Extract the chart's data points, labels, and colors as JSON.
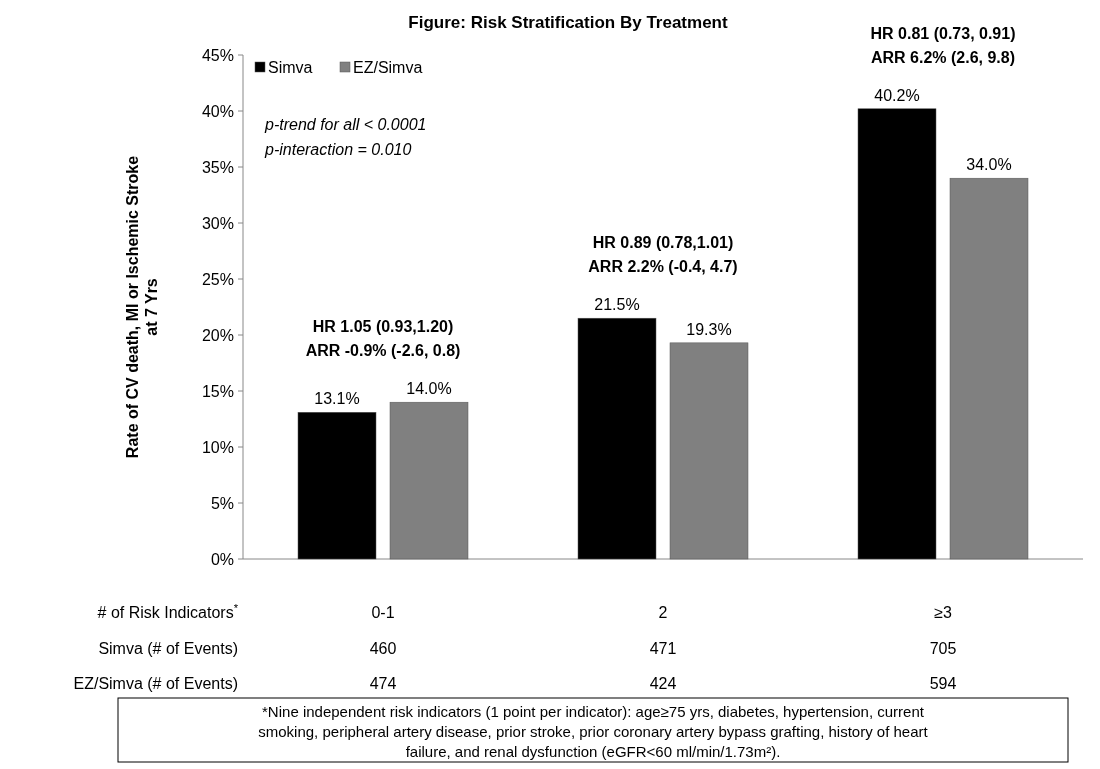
{
  "chart_data": {
    "type": "bar",
    "title": "Figure: Risk Stratification By Treatment",
    "xlabel": "# of Risk Indicators$^{*}$",
    "ylabel": "Rate of CV death, MI or Ischemic Stroke at 7 Yrs",
    "categories": [
      "0-1",
      "2",
      "≥3"
    ],
    "series": [
      {
        "name": "Simva",
        "color": "#000000",
        "values": [
          13.1,
          21.5,
          40.2
        ],
        "value_labels": [
          "13.1%",
          "21.5%",
          "40.2%"
        ]
      },
      {
        "name": "EZ/Simva",
        "color": "#808080",
        "values": [
          14.0,
          19.3,
          34.0
        ],
        "value_labels": [
          "14.0%",
          "19.3%",
          "34.0%"
        ]
      }
    ],
    "ylim": [
      0,
      45
    ],
    "yticks": [
      {
        "value": 0,
        "label": "0%"
      },
      {
        "value": 5,
        "label": "5%"
      },
      {
        "value": 10,
        "label": "10%"
      },
      {
        "value": 15,
        "label": "15%"
      },
      {
        "value": 20,
        "label": "20%"
      },
      {
        "value": 25,
        "label": "25%"
      },
      {
        "value": 30,
        "label": "30%"
      },
      {
        "value": 35,
        "label": "35%"
      },
      {
        "value": 40,
        "label": "40%"
      },
      {
        "value": 45,
        "label": "45%"
      }
    ],
    "grid": false,
    "legend": "top left",
    "annotations": [
      "p-trend for all < 0.0001",
      "p-interaction = 0.010",
      "HR 1.05 (0.93,1.20)\nARR -0.9% (-2.6, 0.8)",
      "HR 0.89 (0.78,1.01)\nARR 2.2% (-0.4, 4.7)",
      "HR 0.81 (0.73, 0.91)\nARR 6.2% (2.6, 9.8)",
      "Simva (# of Events)",
      "460",
      "471",
      "705",
      "EZ/Simva (# of Events)",
      "474",
      "424",
      "594",
      "*Nine independent risk indicators (1 point per indicator): age≥75 yrs, diabetes, hypertension, current\nsmoking, peripheral artery disease, prior stroke, prior coronary artery bypass grafting, history of heart\nfailure, and renal dysfunction (eGFR<60 ml/min/1.73m²)."
    ]
  }
}
